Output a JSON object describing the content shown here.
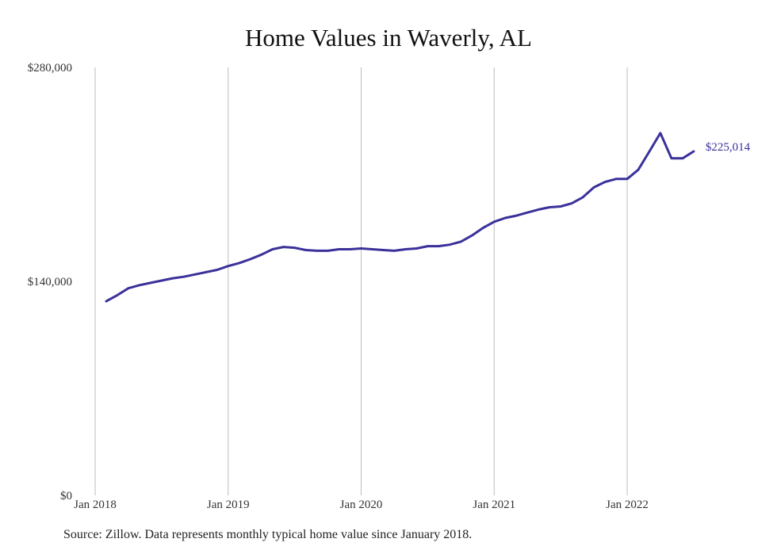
{
  "chart_data": {
    "type": "line",
    "title": "Home Values in Waverly, AL",
    "xlabel": "",
    "ylabel": "",
    "ylim": [
      0,
      280000
    ],
    "yticks": [
      {
        "value": 0,
        "label": "$0"
      },
      {
        "value": 140000,
        "label": "$140,000"
      },
      {
        "value": 280000,
        "label": "$280,000"
      }
    ],
    "xticks": [
      {
        "value": "2018-01",
        "label": "Jan 2018"
      },
      {
        "value": "2019-01",
        "label": "Jan 2019"
      },
      {
        "value": "2020-01",
        "label": "Jan 2020"
      },
      {
        "value": "2021-01",
        "label": "Jan 2021"
      },
      {
        "value": "2022-01",
        "label": "Jan 2022"
      }
    ],
    "grid": "vertical",
    "color": "#3a319a",
    "end_label": "$225,014",
    "series": [
      {
        "x": [
          "2018-02",
          "2018-03",
          "2018-04",
          "2018-05",
          "2018-06",
          "2018-07",
          "2018-08",
          "2018-09",
          "2018-10",
          "2018-11",
          "2018-12",
          "2019-01",
          "2019-02",
          "2019-03",
          "2019-04",
          "2019-05",
          "2019-06",
          "2019-07",
          "2019-08",
          "2019-09",
          "2019-10",
          "2019-11",
          "2019-12",
          "2020-01",
          "2020-02",
          "2020-03",
          "2020-04",
          "2020-05",
          "2020-06",
          "2020-07",
          "2020-08",
          "2020-09",
          "2020-10",
          "2020-11",
          "2020-12",
          "2021-01",
          "2021-02",
          "2021-03",
          "2021-04",
          "2021-05",
          "2021-06",
          "2021-07",
          "2021-08",
          "2021-09",
          "2021-10",
          "2021-11",
          "2021-12",
          "2022-01",
          "2022-02",
          "2022-03",
          "2022-04",
          "2022-05",
          "2022-06",
          "2022-07"
        ],
        "values": [
          127000,
          131000,
          135500,
          137500,
          139000,
          140500,
          142000,
          143000,
          144500,
          146000,
          147500,
          150000,
          152000,
          154500,
          157500,
          161000,
          162500,
          162000,
          160500,
          160000,
          160000,
          161000,
          161000,
          161500,
          161000,
          160500,
          160000,
          161000,
          161500,
          163000,
          163000,
          164000,
          166000,
          170000,
          175000,
          179000,
          181500,
          183000,
          185000,
          187000,
          188500,
          189000,
          191000,
          195000,
          201500,
          205000,
          207000,
          207000,
          213000,
          225000,
          237000,
          220500,
          220500,
          225014
        ]
      }
    ]
  },
  "footer": {
    "source": "Source: Zillow. Data represents monthly typical home value since January 2018."
  }
}
